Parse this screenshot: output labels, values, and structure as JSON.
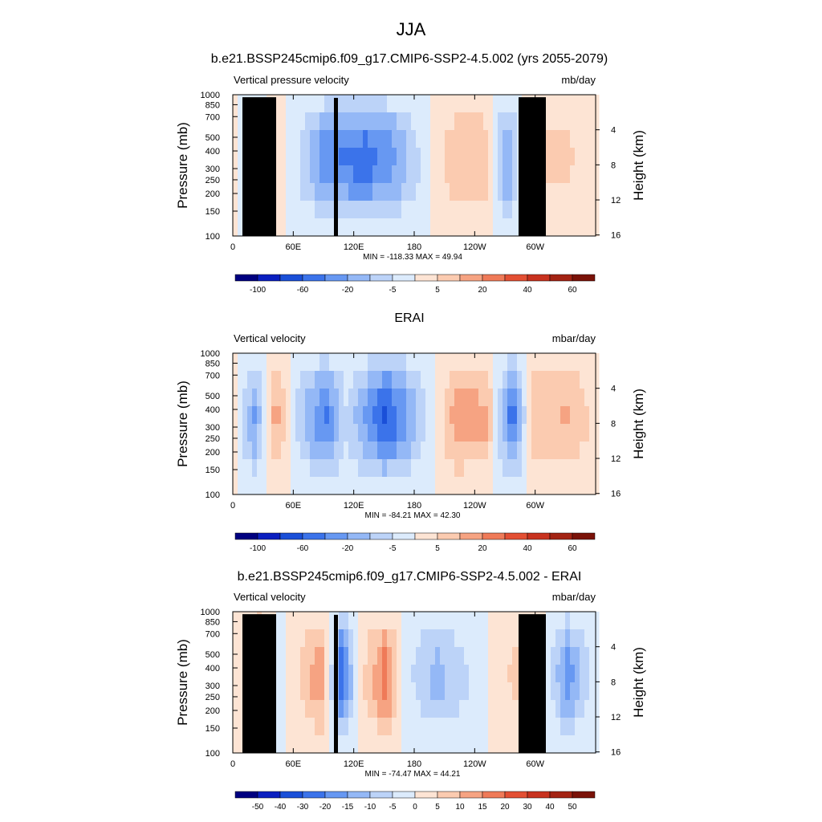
{
  "figure": {
    "title": "JJA"
  },
  "chart_data": [
    {
      "type": "heatmap",
      "id": "p1",
      "title": "b.e21.BSSP245cmip6.f09_g17.CMIP6-SSP2-4.5.002 (yrs 2055-2079)",
      "left_string": "Vertical pressure velocity",
      "right_string": "mb/day",
      "ylabel": "Pressure (mb)",
      "ylabel_right": "Height (km)",
      "x_ticks": [
        "0",
        "60E",
        "120E",
        "180",
        "120W",
        "60W"
      ],
      "y_ticks": [
        "100",
        "150",
        "200",
        "250",
        "300",
        "400",
        "500",
        "700",
        "850",
        "1000"
      ],
      "y_ticks_right": [
        "16",
        "12",
        "8",
        "4"
      ],
      "xlim": [
        0,
        360
      ],
      "ylim": [
        1000,
        100
      ],
      "stats": "MIN = -118.33  MAX =  49.94",
      "min": -118.33,
      "max": 49.94,
      "colorbar_labels": [
        "-100",
        "",
        "-60",
        "",
        "-20",
        "",
        "-5",
        "",
        "5",
        "",
        "20",
        "",
        "40",
        "",
        "60"
      ],
      "colorbar_colors": [
        "#000080",
        "#0a1fc0",
        "#1a4fd8",
        "#3b73ea",
        "#6798f2",
        "#94b8f6",
        "#bcd3f8",
        "#dcebfc",
        "#fde4d4",
        "#fbcbb0",
        "#f6a382",
        "#ef7a58",
        "#e34f33",
        "#c8321f",
        "#a32313",
        "#7a1208"
      ],
      "approx_profile_lon_value": [
        [
          0,
          2
        ],
        [
          20,
          -25
        ],
        [
          40,
          15
        ],
        [
          60,
          -10
        ],
        [
          90,
          -50
        ],
        [
          130,
          -60
        ],
        [
          160,
          -40
        ],
        [
          190,
          -5
        ],
        [
          220,
          25
        ],
        [
          250,
          20
        ],
        [
          270,
          -45
        ],
        [
          290,
          20
        ],
        [
          330,
          15
        ],
        [
          360,
          5
        ]
      ]
    },
    {
      "type": "heatmap",
      "id": "p2",
      "title": "ERAI",
      "left_string": "Vertical velocity",
      "right_string": "mbar/day",
      "ylabel": "Pressure (mb)",
      "ylabel_right": "Height (km)",
      "x_ticks": [
        "0",
        "60E",
        "120E",
        "180",
        "120W",
        "60W"
      ],
      "y_ticks": [
        "100",
        "150",
        "200",
        "250",
        "300",
        "400",
        "500",
        "700",
        "850",
        "1000"
      ],
      "y_ticks_right": [
        "16",
        "12",
        "8",
        "4"
      ],
      "xlim": [
        0,
        360
      ],
      "ylim": [
        1000,
        100
      ],
      "stats": "MIN = -84.21  MAX =  42.30",
      "min": -84.21,
      "max": 42.3,
      "colorbar_labels": [
        "-100",
        "",
        "-60",
        "",
        "-20",
        "",
        "-5",
        "",
        "5",
        "",
        "20",
        "",
        "40",
        "",
        "60"
      ],
      "colorbar_colors": [
        "#000080",
        "#0a1fc0",
        "#1a4fd8",
        "#3b73ea",
        "#6798f2",
        "#94b8f6",
        "#bcd3f8",
        "#dcebfc",
        "#fde4d4",
        "#fbcbb0",
        "#f6a382",
        "#ef7a58",
        "#e34f33",
        "#c8321f",
        "#a32313",
        "#7a1208"
      ],
      "approx_profile_lon_value": [
        [
          0,
          2
        ],
        [
          20,
          -30
        ],
        [
          40,
          25
        ],
        [
          60,
          -10
        ],
        [
          90,
          -40
        ],
        [
          110,
          -10
        ],
        [
          150,
          -50
        ],
        [
          180,
          -20
        ],
        [
          220,
          25
        ],
        [
          250,
          20
        ],
        [
          275,
          -45
        ],
        [
          295,
          15
        ],
        [
          330,
          20
        ],
        [
          360,
          5
        ]
      ]
    },
    {
      "type": "heatmap",
      "id": "p3",
      "title": "b.e21.BSSP245cmip6.f09_g17.CMIP6-SSP2-4.5.002 - ERAI",
      "left_string": "Vertical velocity",
      "right_string": "mbar/day",
      "ylabel": "Pressure (mb)",
      "ylabel_right": "Height (km)",
      "x_ticks": [
        "0",
        "60E",
        "120E",
        "180",
        "120W",
        "60W"
      ],
      "y_ticks": [
        "100",
        "150",
        "200",
        "250",
        "300",
        "400",
        "500",
        "700",
        "850",
        "1000"
      ],
      "y_ticks_right": [
        "16",
        "12",
        "8",
        "4"
      ],
      "xlim": [
        0,
        360
      ],
      "ylim": [
        1000,
        100
      ],
      "stats": "MIN = -74.47  MAX =  44.21",
      "min": -74.47,
      "max": 44.21,
      "colorbar_labels": [
        "-50",
        "-40",
        "-30",
        "-20",
        "-15",
        "-10",
        "-5",
        "0",
        "5",
        "10",
        "15",
        "20",
        "30",
        "40",
        "50"
      ],
      "colorbar_colors": [
        "#000080",
        "#0a1fc0",
        "#1a4fd8",
        "#3b73ea",
        "#6798f2",
        "#94b8f6",
        "#bcd3f8",
        "#dcebfc",
        "#fde4d4",
        "#fbcbb0",
        "#f6a382",
        "#ef7a58",
        "#e34f33",
        "#c8321f",
        "#a32313",
        "#7a1208"
      ],
      "approx_profile_lon_value": [
        [
          0,
          2
        ],
        [
          25,
          30
        ],
        [
          45,
          -5
        ],
        [
          85,
          25
        ],
        [
          105,
          -40
        ],
        [
          125,
          5
        ],
        [
          150,
          30
        ],
        [
          170,
          -5
        ],
        [
          200,
          -20
        ],
        [
          240,
          -5
        ],
        [
          275,
          10
        ],
        [
          300,
          10
        ],
        [
          330,
          -30
        ],
        [
          360,
          0
        ]
      ]
    }
  ]
}
